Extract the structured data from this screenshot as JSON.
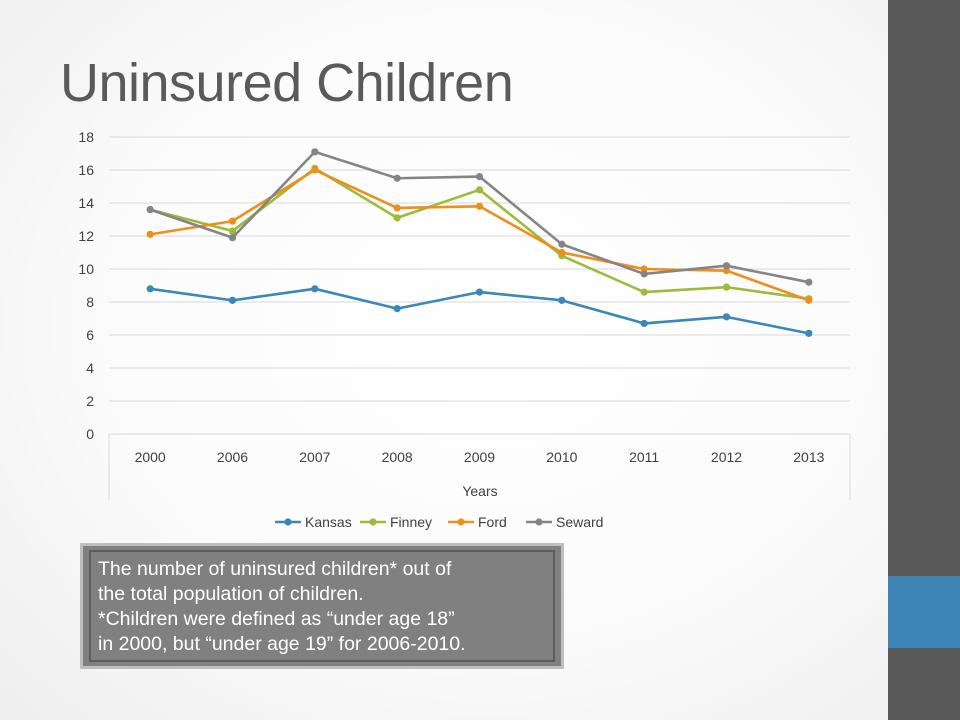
{
  "slide": {
    "title": "Uninsured Children",
    "note_lines": [
      "The number of uninsured children* out of",
      "the total population of children.",
      "*Children were defined as “under age 18”",
      "in 2000, but “under age 19” for 2006-2010."
    ]
  },
  "colors": {
    "sidebar": "#595959",
    "sidebar_accent": "#3d85b4",
    "title": "#5a5a5a"
  },
  "chart_data": {
    "type": "line",
    "title": "",
    "xlabel": "Years",
    "ylabel": "",
    "ylim": [
      0,
      18
    ],
    "yticks": [
      0,
      2,
      4,
      6,
      8,
      10,
      12,
      14,
      16,
      18
    ],
    "grid": true,
    "legend_position": "bottom",
    "categories": [
      "2000",
      "2006",
      "2007",
      "2008",
      "2009",
      "2010",
      "2011",
      "2012",
      "2013"
    ],
    "series": [
      {
        "name": "Kansas",
        "color": "#3a87b8",
        "values": [
          8.8,
          8.1,
          8.8,
          7.6,
          8.6,
          8.1,
          6.7,
          7.1,
          6.1
        ]
      },
      {
        "name": "Finney",
        "color": "#9bbb3a",
        "values": [
          13.6,
          12.3,
          16.1,
          13.1,
          14.8,
          10.8,
          8.6,
          8.9,
          8.2
        ]
      },
      {
        "name": "Ford",
        "color": "#ee8f1c",
        "values": [
          12.1,
          12.9,
          16.0,
          13.7,
          13.8,
          11.0,
          10.0,
          9.9,
          8.1
        ]
      },
      {
        "name": "Seward",
        "color": "#858585",
        "values": [
          13.6,
          11.9,
          17.1,
          15.5,
          15.6,
          11.5,
          9.7,
          10.2,
          9.2
        ]
      }
    ]
  }
}
